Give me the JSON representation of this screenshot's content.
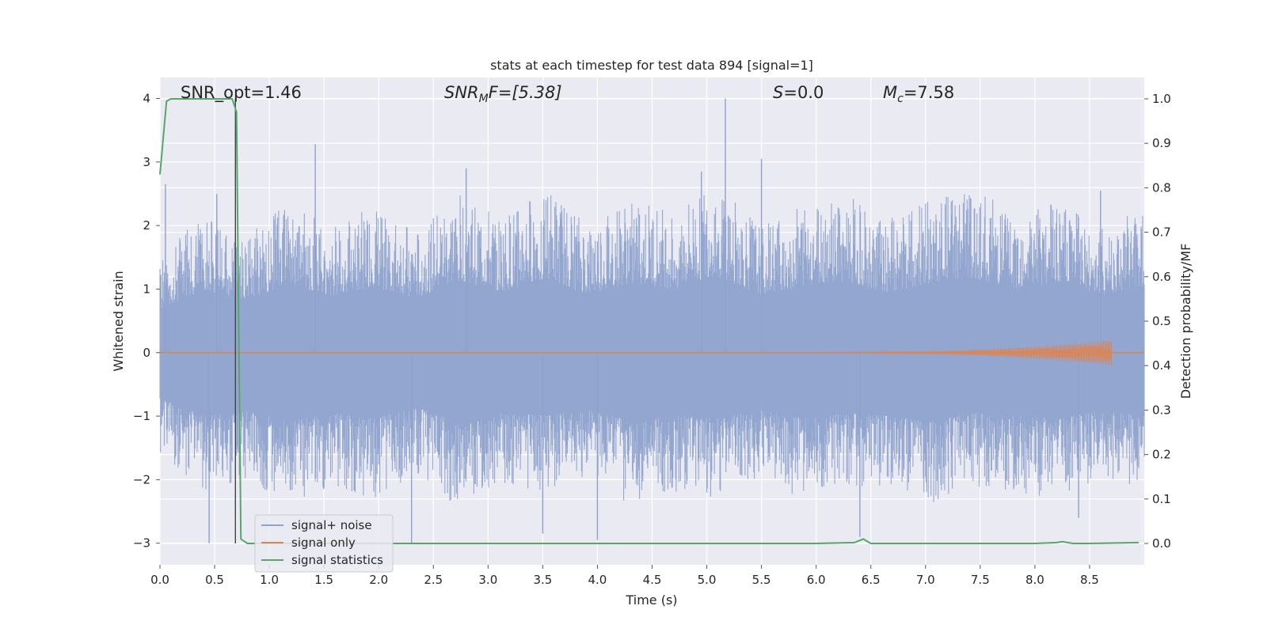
{
  "chart_data": {
    "type": "line",
    "title": "stats at each timestep for test data 894 [signal=1]",
    "xlabel": "Time (s)",
    "ylabel_left": "Whitened strain",
    "ylabel_right": "Detection probability/MF",
    "xlim": [
      0.0,
      9.0
    ],
    "ylim_left": [
      -3.34,
      4.33
    ],
    "ylim_right": [
      -0.048,
      1.048
    ],
    "grid": true,
    "legend_position": "lower-left",
    "x_ticks": [
      "0.0",
      "0.5",
      "1.0",
      "1.5",
      "2.0",
      "2.5",
      "3.0",
      "3.5",
      "4.0",
      "4.5",
      "5.0",
      "5.5",
      "6.0",
      "6.5",
      "7.0",
      "7.5",
      "8.0",
      "8.5"
    ],
    "x_tick_values": [
      0,
      0.5,
      1,
      1.5,
      2,
      2.5,
      3,
      3.5,
      4,
      4.5,
      5,
      5.5,
      6,
      6.5,
      7,
      7.5,
      8,
      8.5
    ],
    "y_left_ticks": [
      "−3",
      "−2",
      "−1",
      "0",
      "1",
      "2",
      "3",
      "4"
    ],
    "y_left_tick_values": [
      -3,
      -2,
      -1,
      0,
      1,
      2,
      3,
      4
    ],
    "y_right_ticks": [
      "0.0",
      "0.1",
      "0.2",
      "0.3",
      "0.4",
      "0.5",
      "0.6",
      "0.7",
      "0.8",
      "0.9",
      "1.0"
    ],
    "y_right_tick_values": [
      0,
      0.1,
      0.2,
      0.3,
      0.4,
      0.5,
      0.6,
      0.7,
      0.8,
      0.9,
      1.0
    ],
    "annotations": {
      "snr_opt": "SNR_opt=1.46",
      "snr_mf_main": "SNR",
      "snr_mf_sub": "M",
      "snr_mf_tail": "F=[5.38]",
      "s_main": "S",
      "s_tail": "=0.0",
      "mc_main": "M",
      "mc_sub": "c",
      "mc_tail": "=7.58"
    },
    "vertical_marker_x": 0.69,
    "series": [
      {
        "name": "signal+ noise",
        "color": "#8ea2cc",
        "axis": "left",
        "envelope_upper": [
          1.5,
          2.2,
          1.8,
          2.4,
          2.0,
          2.3,
          1.9,
          2.5,
          2.1,
          2.6,
          2.0,
          2.4,
          2.2,
          2.7,
          2.0,
          2.3,
          2.5,
          2.1,
          2.4,
          2.6,
          2.2,
          2.5,
          2.0,
          2.3
        ],
        "envelope_lower": [
          -1.6,
          -2.2,
          -2.0,
          -2.4,
          -2.1,
          -2.3,
          -1.9,
          -2.5,
          -2.1,
          -2.2,
          -2.0,
          -2.4,
          -2.2,
          -2.3,
          -2.0,
          -2.3,
          -2.1,
          -2.2,
          -2.4,
          -2.1,
          -2.2,
          -2.3,
          -2.0,
          -2.2
        ],
        "peaks": [
          {
            "x": 0.05,
            "y": 2.65
          },
          {
            "x": 0.45,
            "y": -3.0
          },
          {
            "x": 0.52,
            "y": 2.5
          },
          {
            "x": 1.42,
            "y": 3.28
          },
          {
            "x": 2.3,
            "y": -3.0
          },
          {
            "x": 2.8,
            "y": 2.9
          },
          {
            "x": 3.5,
            "y": -2.85
          },
          {
            "x": 4.0,
            "y": -2.95
          },
          {
            "x": 4.95,
            "y": 2.85
          },
          {
            "x": 5.17,
            "y": 4.0
          },
          {
            "x": 5.5,
            "y": 3.05
          },
          {
            "x": 6.4,
            "y": -2.9
          },
          {
            "x": 8.6,
            "y": 2.55
          },
          {
            "x": 8.4,
            "y": -2.6
          }
        ]
      },
      {
        "name": "signal only",
        "color": "#dd8452",
        "axis": "left",
        "chirp": {
          "start_x": 5.5,
          "end_x": 8.7,
          "max_amplitude": 0.2
        }
      },
      {
        "name": "signal statistics",
        "color": "#55a868",
        "axis": "right",
        "x": [
          0.0,
          0.06,
          0.1,
          0.2,
          0.4,
          0.6,
          0.66,
          0.7,
          0.74,
          0.8,
          1.0,
          3.0,
          6.0,
          6.35,
          6.43,
          6.5,
          6.6,
          8.0,
          8.2,
          8.25,
          8.35,
          8.5,
          8.95
        ],
        "y": [
          0.83,
          0.995,
          1.0,
          1.0,
          1.0,
          1.0,
          1.0,
          0.97,
          0.01,
          0.0,
          0.0,
          0.0,
          0.0,
          0.002,
          0.01,
          0.0,
          0.0,
          0.0,
          0.002,
          0.004,
          0.0,
          0.0,
          0.002
        ]
      }
    ]
  }
}
